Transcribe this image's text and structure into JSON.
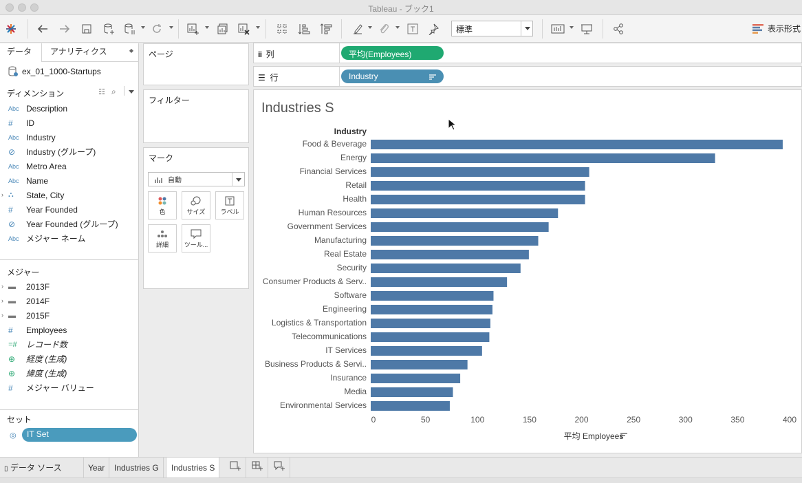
{
  "window": {
    "title": "Tableau - ブック1"
  },
  "toolbar": {
    "fit_value": "標準",
    "show_me_label": "表示形式",
    "icons": [
      "tableau-logo-icon",
      "back-icon",
      "forward-icon",
      "save-icon",
      "new-datasource-icon",
      "pause-updates-icon",
      "refresh-icon",
      "new-worksheet-icon",
      "duplicate-sheet-icon",
      "clear-sheet-icon",
      "swap-icon",
      "sort-ascending-icon",
      "sort-descending-icon",
      "highlight-icon",
      "group-icon",
      "label-icon",
      "pin-icon",
      "cards-icon",
      "presentation-icon",
      "share-icon"
    ]
  },
  "data_pane": {
    "tabs": [
      "データ",
      "アナリティクス"
    ],
    "datasource": "ex_01_1000-Startups",
    "dimensions_header": "ディメンション",
    "dimensions": [
      {
        "type": "Abc",
        "label": "Description"
      },
      {
        "type": "#",
        "label": "ID"
      },
      {
        "type": "Abc",
        "label": "Industry"
      },
      {
        "type": "clip",
        "label": "Industry (グループ)"
      },
      {
        "type": "Abc",
        "label": "Metro Area"
      },
      {
        "type": "Abc",
        "label": "Name"
      },
      {
        "type": "hier",
        "label": "State, City"
      },
      {
        "type": "#",
        "label": "Year Founded"
      },
      {
        "type": "clip",
        "label": "Year Founded (グループ)"
      },
      {
        "type": "Abc",
        "label": "メジャー ネーム"
      }
    ],
    "measures_header": "メジャー",
    "measures": [
      {
        "type": "folder",
        "label": "2013F"
      },
      {
        "type": "folder",
        "label": "2014F"
      },
      {
        "type": "folder",
        "label": "2015F"
      },
      {
        "type": "#",
        "label": "Employees"
      },
      {
        "type": "=#",
        "label": "レコード数"
      },
      {
        "type": "globe",
        "label": "経度 (生成)"
      },
      {
        "type": "globe",
        "label": "緯度 (生成)"
      },
      {
        "type": "#",
        "label": "メジャー バリュー"
      }
    ],
    "sets_header": "セット",
    "set_item": "IT Set"
  },
  "cards": {
    "pages": "ページ",
    "filters": "フィルター",
    "marks": "マーク",
    "mark_type": "自動",
    "mark_buttons": [
      {
        "label": "色"
      },
      {
        "label": "サイズ"
      },
      {
        "label": "ラベル"
      },
      {
        "label": "詳細"
      },
      {
        "label": "ツール..."
      }
    ]
  },
  "shelves": {
    "columns_label": "列",
    "columns_pill": "平均(Employees)",
    "rows_label": "行",
    "rows_pill": "Industry"
  },
  "sheet": {
    "title": "Industries S"
  },
  "chart_data": {
    "type": "bar",
    "orientation": "horizontal",
    "title": "Industries S",
    "ylabel": "Industry",
    "xlabel": "平均 Employees",
    "xlim": [
      0,
      400
    ],
    "xticks": [
      0,
      50,
      100,
      150,
      200,
      250,
      300,
      350,
      400
    ],
    "bar_color": "#4e79a7",
    "categories": [
      "Food & Beverage",
      "Energy",
      "Financial Services",
      "Retail",
      "Health",
      "Human Resources",
      "Government Services",
      "Manufacturing",
      "Real Estate",
      "Security",
      "Consumer Products & Serv..",
      "Software",
      "Engineering",
      "Logistics & Transportation",
      "Telecommunications",
      "IT Services",
      "Business Products & Servi..",
      "Insurance",
      "Media",
      "Environmental Services"
    ],
    "values": [
      396,
      331,
      210,
      206,
      206,
      180,
      171,
      161,
      152,
      144,
      131,
      118,
      117,
      115,
      114,
      107,
      93,
      86,
      79,
      76
    ]
  },
  "sheet_tabs": [
    "データ ソース",
    "Year",
    "Industries G",
    "Industries S"
  ],
  "active_tab": "Industries S"
}
